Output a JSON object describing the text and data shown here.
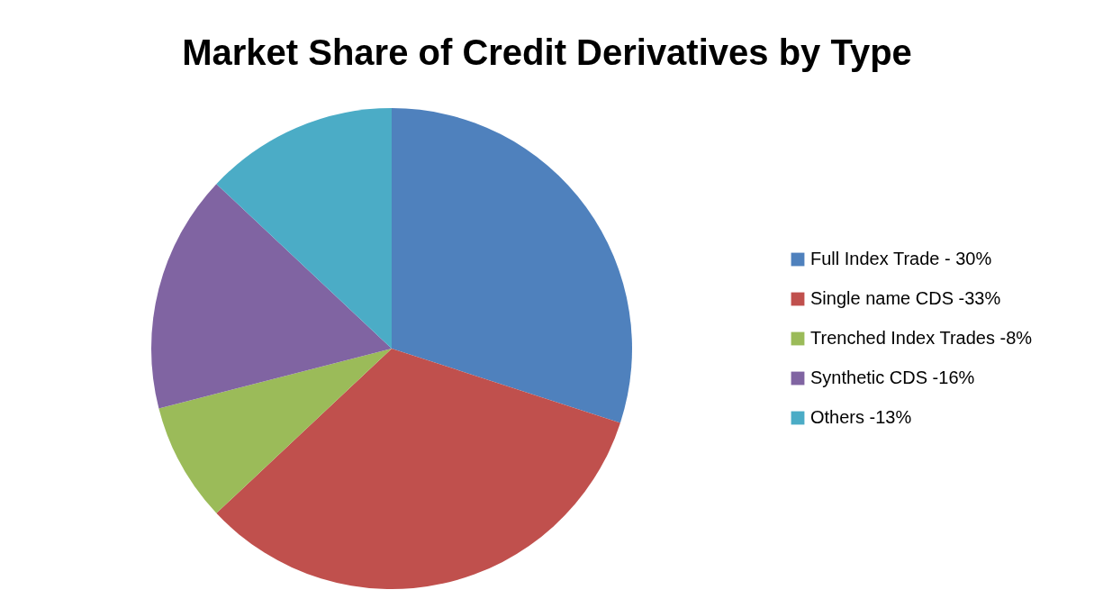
{
  "chart_data": {
    "type": "pie",
    "title": "Market Share of Credit Derivatives by Type",
    "categories": [
      "Full Index Trade - 30%",
      "Single name CDS -33%",
      "Trenched Index Trades -8%",
      "Synthetic CDS -16%",
      "Others -13%"
    ],
    "values": [
      30,
      33,
      8,
      16,
      13
    ],
    "colors": [
      "#4f81bd",
      "#c0504d",
      "#9bbb59",
      "#8064a2",
      "#4bacc6"
    ],
    "legend": "right"
  }
}
